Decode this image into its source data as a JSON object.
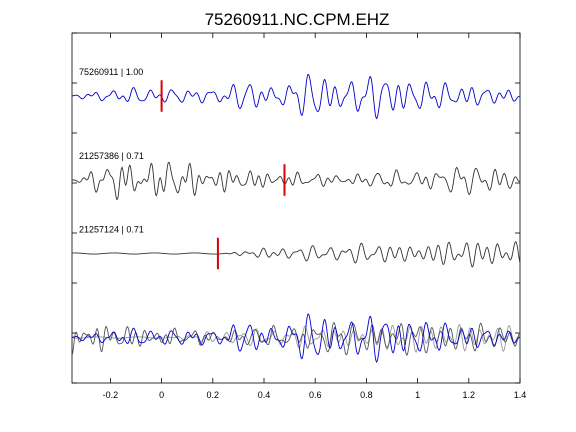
{
  "chart_data": {
    "type": "line",
    "title": "75260911.NC.CPM.EHZ",
    "xlabel": "",
    "ylabel": "",
    "xlim": [
      -0.35,
      1.4
    ],
    "xticks": [
      -0.2,
      0,
      0.2,
      0.4,
      0.6,
      0.8,
      1,
      1.2,
      1.4
    ],
    "xtick_labels": [
      "-0.2",
      "0",
      "0.2",
      "0.4",
      "0.6",
      "0.8",
      "1",
      "1.2",
      "1.4"
    ],
    "ylim": [
      0,
      1
    ],
    "grid": false,
    "colors": {
      "reference": "#0000cc",
      "other": "#333333",
      "pick": "#dd0000",
      "frame": "#000000"
    },
    "series": [
      {
        "label": "75260911 | 1.00",
        "color": "#0000cc",
        "pick_time": 0.0,
        "onset": -0.35,
        "baseline": 0.82,
        "amp": 0.055,
        "seed": 11,
        "freq": 22
      },
      {
        "label": "21257386 | 0.71",
        "color": "#333333",
        "pick_time": 0.48,
        "onset": -0.35,
        "baseline": 0.58,
        "amp": 0.05,
        "seed": 27,
        "freq": 20
      },
      {
        "label": "21257124 | 0.71",
        "color": "#333333",
        "pick_time": 0.22,
        "onset": 0.24,
        "baseline": 0.37,
        "amp": 0.055,
        "seed": 53,
        "freq": 21
      }
    ],
    "overlay": {
      "baseline": 0.13,
      "amp": 0.06
    }
  }
}
